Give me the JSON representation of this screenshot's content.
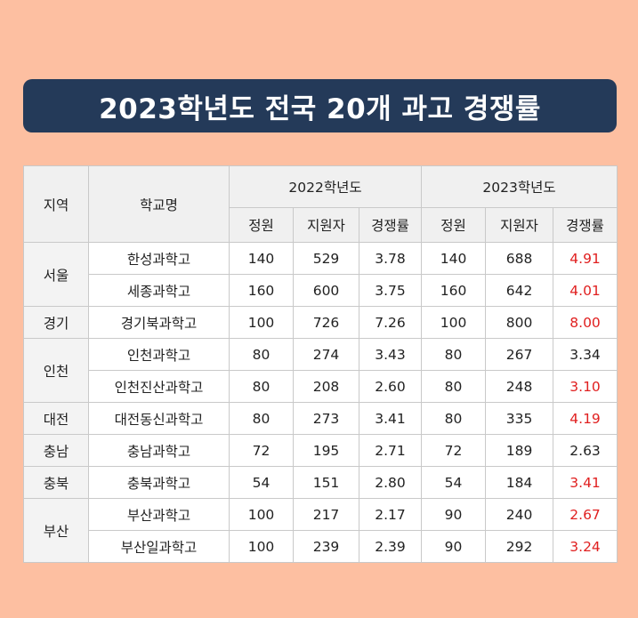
{
  "title": "2023학년도 전국 20개 과고 경쟁률",
  "headers": {
    "region": "지역",
    "school": "학교명",
    "year_2022": "2022학년도",
    "year_2023": "2023학년도",
    "quota": "정원",
    "applicants": "지원자",
    "rate": "경쟁률"
  },
  "highlight_color": "#E02020",
  "rows": [
    {
      "region": "서울",
      "school": "한성과학고",
      "q22": "140",
      "a22": "529",
      "r22": "3.78",
      "q23": "140",
      "a23": "688",
      "r23": "4.91",
      "up": true
    },
    {
      "region": "서울",
      "school": "세종과학고",
      "q22": "160",
      "a22": "600",
      "r22": "3.75",
      "q23": "160",
      "a23": "642",
      "r23": "4.01",
      "up": true
    },
    {
      "region": "경기",
      "school": "경기북과학고",
      "q22": "100",
      "a22": "726",
      "r22": "7.26",
      "q23": "100",
      "a23": "800",
      "r23": "8.00",
      "up": true
    },
    {
      "region": "인천",
      "school": "인천과학고",
      "q22": "80",
      "a22": "274",
      "r22": "3.43",
      "q23": "80",
      "a23": "267",
      "r23": "3.34",
      "up": false
    },
    {
      "region": "인천",
      "school": "인천진산과학고",
      "q22": "80",
      "a22": "208",
      "r22": "2.60",
      "q23": "80",
      "a23": "248",
      "r23": "3.10",
      "up": true
    },
    {
      "region": "대전",
      "school": "대전동신과학고",
      "q22": "80",
      "a22": "273",
      "r22": "3.41",
      "q23": "80",
      "a23": "335",
      "r23": "4.19",
      "up": true
    },
    {
      "region": "충남",
      "school": "충남과학고",
      "q22": "72",
      "a22": "195",
      "r22": "2.71",
      "q23": "72",
      "a23": "189",
      "r23": "2.63",
      "up": false
    },
    {
      "region": "충북",
      "school": "충북과학고",
      "q22": "54",
      "a22": "151",
      "r22": "2.80",
      "q23": "54",
      "a23": "184",
      "r23": "3.41",
      "up": true
    },
    {
      "region": "부산",
      "school": "부산과학고",
      "q22": "100",
      "a22": "217",
      "r22": "2.17",
      "q23": "90",
      "a23": "240",
      "r23": "2.67",
      "up": true
    },
    {
      "region": "부산",
      "school": "부산일과학고",
      "q22": "100",
      "a22": "239",
      "r22": "2.39",
      "q23": "90",
      "a23": "292",
      "r23": "3.24",
      "up": true
    }
  ]
}
